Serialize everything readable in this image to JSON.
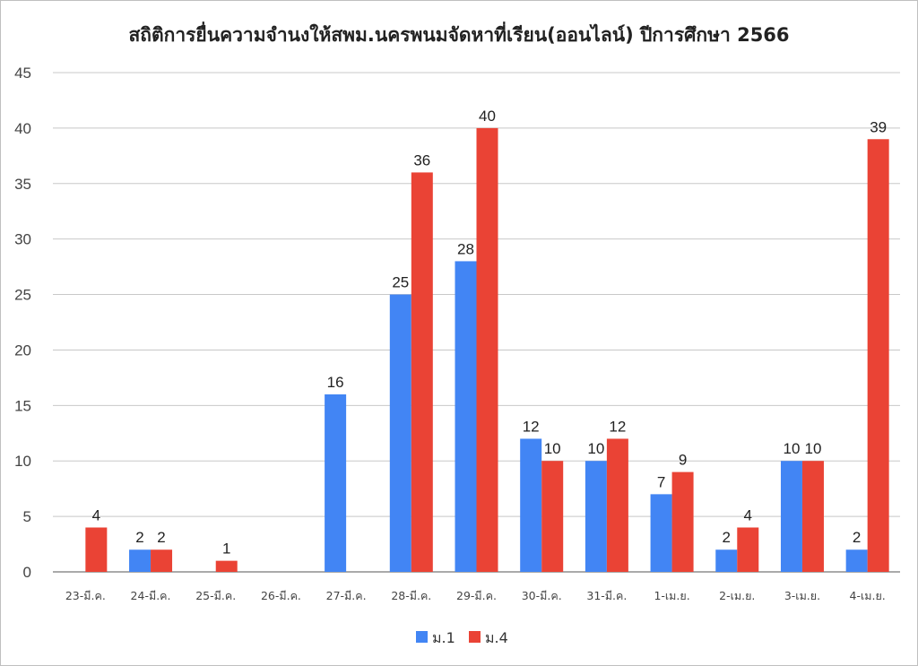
{
  "chart_data": {
    "type": "bar",
    "title": "สถิติการยื่นความจำนงให้สพม.นครพนมจัดหาที่เรียน(ออนไลน์) ปีการศึกษา 2566",
    "xlabel": "",
    "ylabel": "",
    "ylim": [
      0,
      45
    ],
    "yticks": [
      0,
      5,
      10,
      15,
      20,
      25,
      30,
      35,
      40,
      45
    ],
    "grid": true,
    "legend_position": "bottom",
    "categories": [
      "23-มี.ค.",
      "24-มี.ค.",
      "25-มี.ค.",
      "26-มี.ค.",
      "27-มี.ค.",
      "28-มี.ค.",
      "29-มี.ค.",
      "30-มี.ค.",
      "31-มี.ค.",
      "1-เม.ย.",
      "2-เม.ย.",
      "3-เม.ย.",
      "4-เม.ย."
    ],
    "series": [
      {
        "name": "ม.1",
        "color": "#4285f4",
        "values": [
          null,
          2,
          null,
          null,
          16,
          25,
          28,
          12,
          10,
          7,
          2,
          10,
          2
        ]
      },
      {
        "name": "ม.4",
        "color": "#ea4335",
        "values": [
          4,
          2,
          1,
          null,
          null,
          36,
          40,
          10,
          12,
          9,
          4,
          10,
          39
        ]
      }
    ]
  }
}
